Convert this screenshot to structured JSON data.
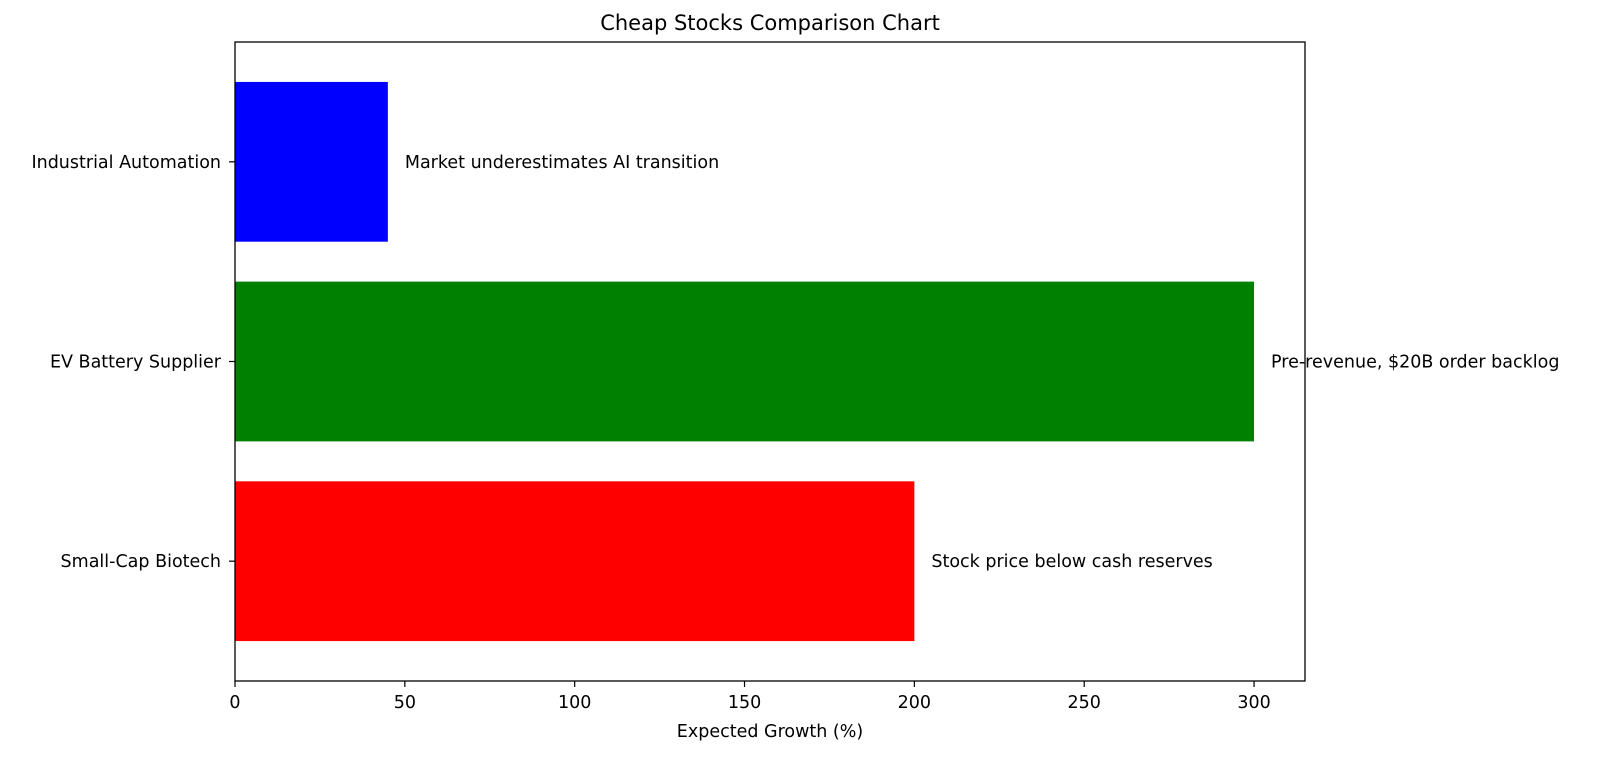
{
  "chart_data": {
    "type": "bar",
    "orientation": "horizontal",
    "title": "Cheap Stocks Comparison Chart",
    "xlabel": "Expected Growth (%)",
    "ylabel": "",
    "xlim": [
      0,
      315
    ],
    "xticks": [
      0,
      50,
      100,
      150,
      200,
      250,
      300
    ],
    "grid": false,
    "categories": [
      "Small-Cap Biotech",
      "EV Battery Supplier",
      "Industrial Automation"
    ],
    "values": [
      200,
      300,
      45
    ],
    "colors": [
      "#ff0000",
      "#008000",
      "#0000ff"
    ],
    "annotations": [
      "Stock price below cash reserves",
      "Pre-revenue, $20B order backlog",
      "Market underestimates AI transition"
    ]
  }
}
